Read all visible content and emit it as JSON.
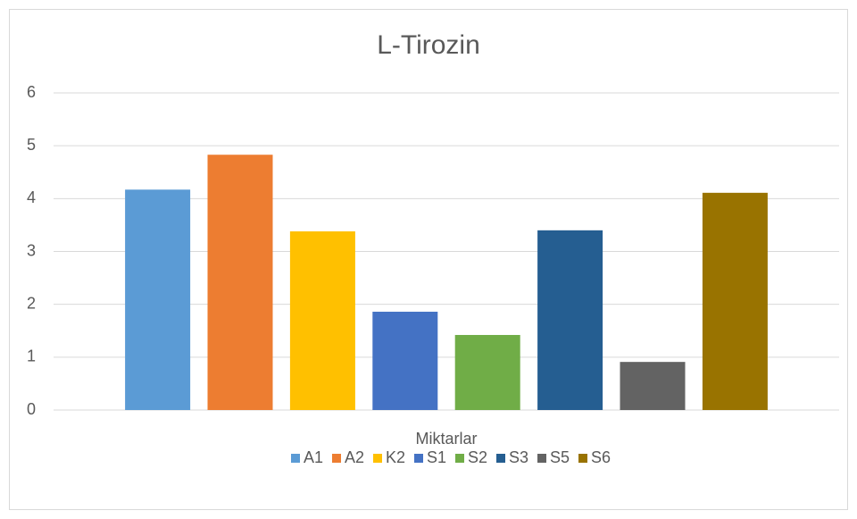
{
  "chart_data": {
    "type": "bar",
    "title": "L-Tirozin",
    "categories": [
      "Miktarlar"
    ],
    "series": [
      {
        "name": "A1",
        "color": "#5b9bd5",
        "values": [
          4.17
        ]
      },
      {
        "name": "A2",
        "color": "#ed7d31",
        "values": [
          4.83
        ]
      },
      {
        "name": "K2",
        "color": "#ffc000",
        "values": [
          3.38
        ]
      },
      {
        "name": "S1",
        "color": "#4472c4",
        "values": [
          1.86
        ]
      },
      {
        "name": "S2",
        "color": "#70ad47",
        "values": [
          1.42
        ]
      },
      {
        "name": "S3",
        "color": "#255e91",
        "values": [
          3.4
        ]
      },
      {
        "name": "S5",
        "color": "#636363",
        "values": [
          0.91
        ]
      },
      {
        "name": "S6",
        "color": "#997300",
        "values": [
          4.11
        ]
      }
    ],
    "ylim": [
      0,
      6
    ],
    "yticks": [
      0,
      1,
      2,
      3,
      4,
      5,
      6
    ],
    "grid": true,
    "legend": "bottom"
  }
}
